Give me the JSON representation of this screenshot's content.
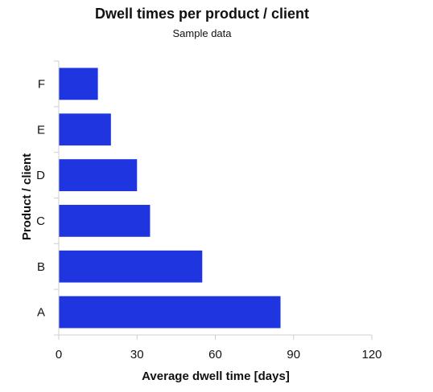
{
  "chart_data": {
    "type": "bar",
    "orientation": "horizontal",
    "title": "Dwell times per product / client",
    "subtitle": "Sample data",
    "xlabel": "Average dwell time [days]",
    "ylabel": "Product / client",
    "categories": [
      "A",
      "B",
      "C",
      "D",
      "E",
      "F"
    ],
    "values": [
      85,
      55,
      35,
      30,
      20,
      15
    ],
    "xlim": [
      0,
      120
    ],
    "xticks": [
      0,
      30,
      60,
      90,
      120
    ],
    "bar_color": "#1f35e0",
    "grid": false,
    "legend": "none"
  }
}
